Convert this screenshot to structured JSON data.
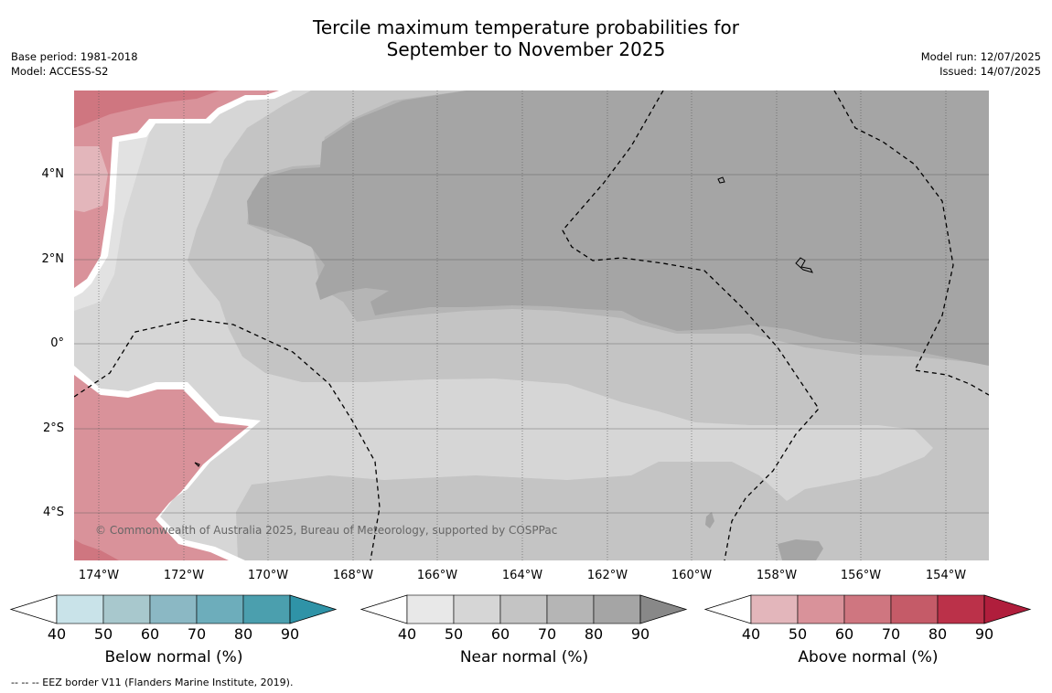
{
  "header": {
    "title_line1": "Tercile maximum temperature probabilities for",
    "title_line2": "September to November 2025",
    "base_period": "Base period: 1981-2018",
    "model": "Model: ACCESS-S2",
    "model_run": "Model run: 12/07/2025",
    "issued": "Issued: 14/07/2025"
  },
  "map": {
    "lat_labels": [
      "4°N",
      "2°N",
      "0°",
      "2°S",
      "4°S"
    ],
    "lon_labels": [
      "174°W",
      "172°W",
      "170°W",
      "168°W",
      "166°W",
      "164°W",
      "162°W",
      "160°W",
      "158°W",
      "156°W",
      "154°W"
    ],
    "copyright": "© Commonwealth of Australia 2025, Bureau of Meteorology, supported by COSPPac",
    "colors": {
      "near_40_50": "#d6d6d6",
      "near_50_60": "#c4c4c4",
      "near_60_70": "#b5b5b5",
      "near_70_80": "#a5a5a5",
      "above_40_50": "#e3b6bb",
      "above_50_60": "#d9929a",
      "above_60_70": "#cf7680",
      "below_40_50": "#c9e3e9"
    }
  },
  "colorbars": [
    {
      "title": "Below normal (%)",
      "ticks": [
        "40",
        "50",
        "60",
        "70",
        "80",
        "90"
      ],
      "colors": [
        "#c9e3e9",
        "#a8c8cd",
        "#8bb8c4",
        "#6dadbb",
        "#4b9fae",
        "#2f93a7"
      ]
    },
    {
      "title": "Near normal (%)",
      "ticks": [
        "40",
        "50",
        "60",
        "70",
        "80",
        "90"
      ],
      "colors": [
        "#e8e8e8",
        "#d6d6d6",
        "#c4c4c4",
        "#b5b5b5",
        "#a5a5a5",
        "#888888"
      ]
    },
    {
      "title": "Above normal (%)",
      "ticks": [
        "40",
        "50",
        "60",
        "70",
        "80",
        "90"
      ],
      "colors": [
        "#e3b6bb",
        "#d9929a",
        "#cf7680",
        "#c55b68",
        "#bb3149",
        "#b01e3c"
      ]
    }
  ],
  "footer": {
    "legend_text": "--  --  -- EEZ border V11 (Flanders Marine Institute, 2019)."
  }
}
